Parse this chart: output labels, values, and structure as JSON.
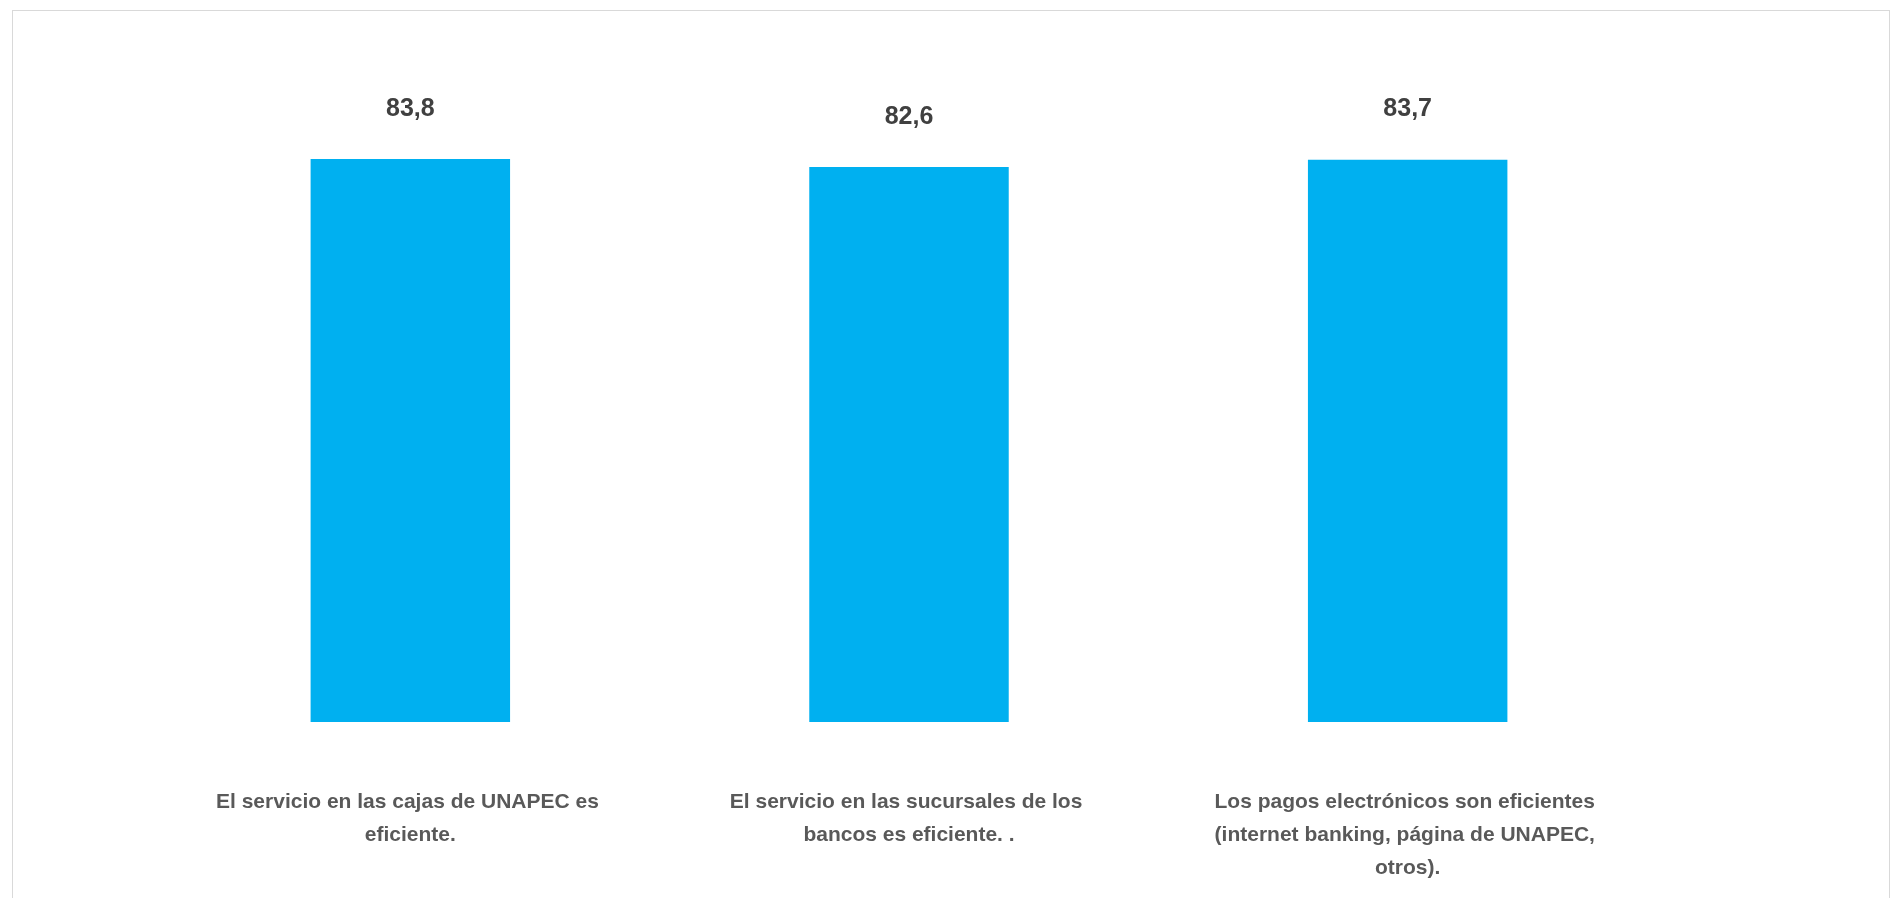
{
  "chart_data": {
    "type": "bar",
    "categories": [
      "El servicio en las cajas de UNAPEC es eficiente.",
      "El servicio en las sucursales de los bancos es eficiente. .",
      "Los pagos electrónicos son eficientes (internet banking, página de UNAPEC, otros)."
    ],
    "values": [
      83.8,
      82.6,
      83.7
    ],
    "color": "#00b0f0",
    "value_labels": [
      "83,8",
      "82,6",
      "83,7"
    ],
    "tick_labels": "x"
  }
}
